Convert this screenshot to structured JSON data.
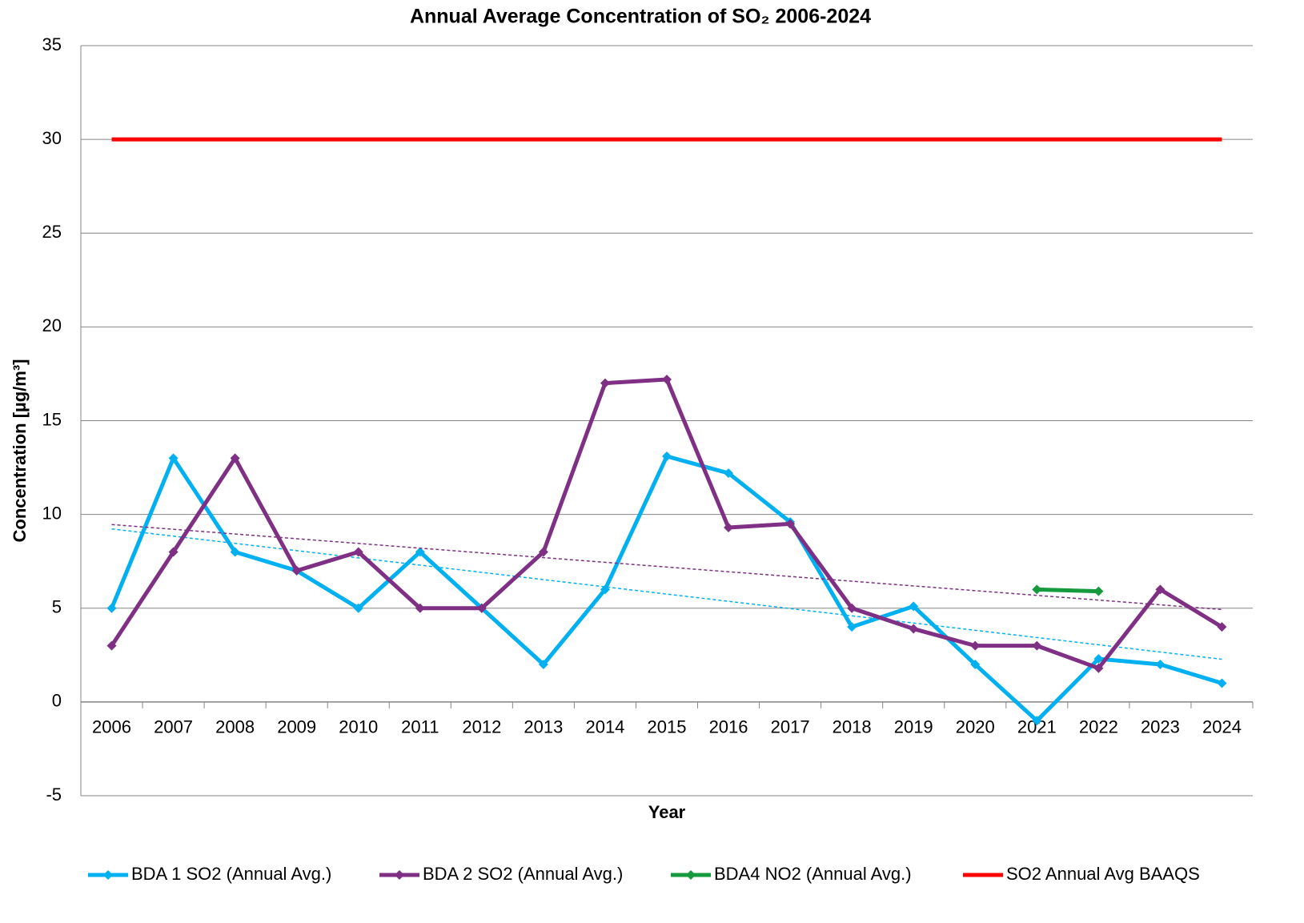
{
  "chart_data": {
    "type": "line",
    "title": "Annual Average Concentration of SO₂ 2006-2024",
    "x_label": "Year",
    "y_label": "Concentration [µg/m³]",
    "categories": [
      "2006",
      "2007",
      "2008",
      "2009",
      "2010",
      "2011",
      "2012",
      "2013",
      "2014",
      "2015",
      "2016",
      "2017",
      "2018",
      "2019",
      "2020",
      "2021",
      "2022",
      "2023",
      "2024"
    ],
    "series": [
      {
        "name": "BDA 1 SO2 (Annual Avg.)",
        "color": "#00b0f0",
        "markers": true,
        "trendline": true,
        "values": [
          5,
          13,
          8,
          7,
          5,
          8,
          5,
          2,
          6,
          13.1,
          12.2,
          9.6,
          4,
          5.1,
          2,
          -1,
          2.3,
          2,
          1
        ]
      },
      {
        "name": "BDA 2 SO2 (Annual Avg.)",
        "color": "#7f2f84",
        "markers": true,
        "trendline": true,
        "values": [
          3,
          8,
          13,
          7,
          8,
          5,
          5,
          8,
          17,
          17.2,
          9.3,
          9.5,
          5,
          3.9,
          3,
          3,
          1.8,
          6,
          4
        ]
      },
      {
        "name": "BDA4 NO2 (Annual Avg.)",
        "color": "#159a3d",
        "markers": true,
        "trendline": false,
        "values": [
          null,
          null,
          null,
          null,
          null,
          null,
          null,
          null,
          null,
          null,
          null,
          null,
          null,
          null,
          null,
          6,
          5.9,
          null,
          null
        ]
      },
      {
        "name": "SO2 Annual Avg BAAQS",
        "color": "#ff0000",
        "markers": false,
        "trendline": false,
        "values": [
          30,
          30,
          30,
          30,
          30,
          30,
          30,
          30,
          30,
          30,
          30,
          30,
          30,
          30,
          30,
          30,
          30,
          30,
          30
        ]
      }
    ],
    "ylim": [
      -5,
      35
    ],
    "yticks": [
      -5,
      0,
      5,
      10,
      15,
      20,
      25,
      30,
      35
    ],
    "grid": true,
    "legend": "bottom"
  }
}
